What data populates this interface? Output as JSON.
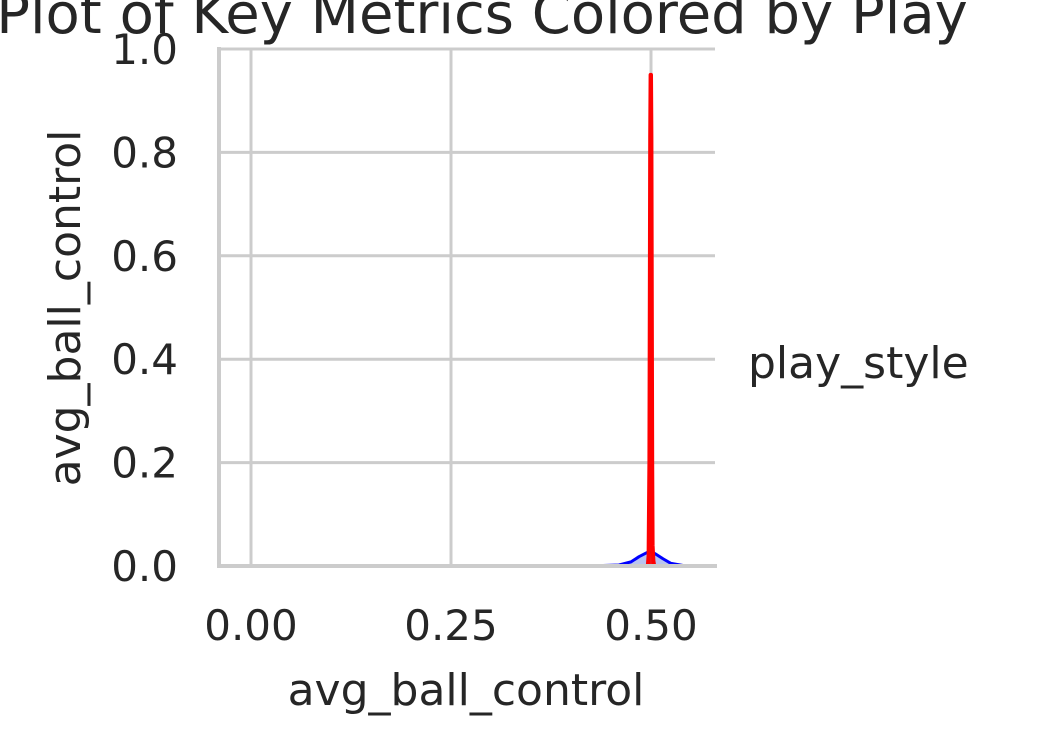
{
  "chart_data": {
    "type": "line",
    "title": "Plot of Key Metrics Colored by Play",
    "xlabel": "avg_ball_control",
    "ylabel": "avg_ball_control",
    "xlim": [
      -0.04,
      0.58
    ],
    "ylim": [
      0.0,
      1.0
    ],
    "x_ticks": [
      "0.00",
      "0.25",
      "0.50"
    ],
    "x_tick_values": [
      0.0,
      0.25,
      0.5
    ],
    "y_ticks": [
      "0.0",
      "0.2",
      "0.4",
      "0.6",
      "0.8",
      "1.0"
    ],
    "y_tick_values": [
      0.0,
      0.2,
      0.4,
      0.6,
      0.8,
      1.0
    ],
    "grid": true,
    "legend": {
      "title": "play_style",
      "placement": "right"
    },
    "series": [
      {
        "color": "#0000ff",
        "fill": "#a8b4ec",
        "x": [
          -0.015,
          0.0,
          0.1,
          0.2,
          0.3,
          0.4,
          0.44,
          0.46,
          0.475,
          0.485,
          0.495,
          0.5,
          0.505,
          0.515,
          0.525,
          0.54,
          0.555
        ],
        "y": [
          0.0,
          0.0,
          0.0,
          0.0,
          0.0,
          0.0,
          0.001,
          0.002,
          0.008,
          0.018,
          0.026,
          0.027,
          0.024,
          0.014,
          0.005,
          0.001,
          0.0
        ]
      },
      {
        "color": "#ff0000",
        "fill": "#ff0000",
        "x": [
          0.496,
          0.497,
          0.498,
          0.4985,
          0.499,
          0.4995,
          0.5,
          0.5005,
          0.501,
          0.5015,
          0.502,
          0.503,
          0.504
        ],
        "y": [
          0.0,
          0.02,
          0.2,
          0.5,
          0.83,
          0.95,
          0.95,
          0.83,
          0.5,
          0.2,
          0.04,
          0.01,
          0.0
        ]
      }
    ]
  }
}
